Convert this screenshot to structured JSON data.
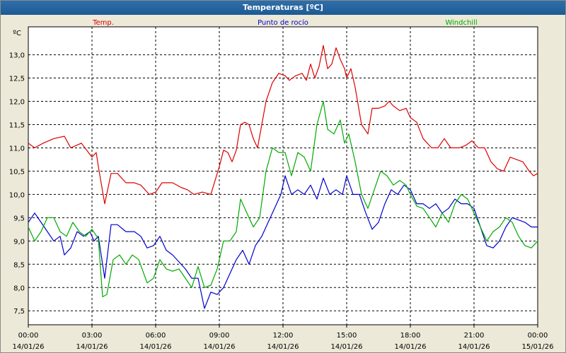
{
  "window": {
    "title": "Temperaturas [ºC]"
  },
  "colors": {
    "temp": "#dd0000",
    "dew": "#0000cc",
    "windchill": "#00aa00",
    "grid": "#000000",
    "plot_bg": "#ffffff"
  },
  "chart_data": {
    "type": "line",
    "title": "Temperaturas [ºC]",
    "ylabel": "ºC",
    "ylim": [
      7.2,
      13.6
    ],
    "yticks": [
      "7,5",
      "8,0",
      "8,5",
      "9,0",
      "9,5",
      "10,0",
      "10,5",
      "11,0",
      "11,5",
      "12,0",
      "12,5",
      "13,0"
    ],
    "yticks_values": [
      7.5,
      8,
      8.5,
      9,
      9.5,
      10,
      10.5,
      11,
      11.5,
      12,
      12.5,
      13
    ],
    "xlim": [
      0,
      24
    ],
    "xticks": [
      {
        "time": "00:00",
        "date": "14/01/26"
      },
      {
        "time": "03:00",
        "date": "14/01/26"
      },
      {
        "time": "06:00",
        "date": "14/01/26"
      },
      {
        "time": "09:00",
        "date": "14/01/26"
      },
      {
        "time": "12:00",
        "date": "14/01/26"
      },
      {
        "time": "15:00",
        "date": "14/01/26"
      },
      {
        "time": "18:00",
        "date": "14/01/26"
      },
      {
        "time": "21:00",
        "date": "14/01/26"
      },
      {
        "time": "00:00",
        "date": "15/01/26"
      }
    ],
    "xticks_values": [
      0,
      3,
      6,
      9,
      12,
      15,
      18,
      21,
      24
    ],
    "grid": true,
    "legend_placement": "top",
    "series": [
      {
        "name": "Temp.",
        "color": "#dd0000",
        "points": [
          [
            0,
            11.1
          ],
          [
            0.3,
            11.0
          ],
          [
            0.7,
            11.1
          ],
          [
            1.2,
            11.2
          ],
          [
            1.7,
            11.25
          ],
          [
            2.0,
            11.0
          ],
          [
            2.5,
            11.1
          ],
          [
            3.0,
            10.8
          ],
          [
            3.2,
            10.9
          ],
          [
            3.3,
            10.6
          ],
          [
            3.6,
            9.8
          ],
          [
            3.9,
            10.45
          ],
          [
            4.2,
            10.45
          ],
          [
            4.6,
            10.25
          ],
          [
            5.0,
            10.25
          ],
          [
            5.3,
            10.2
          ],
          [
            5.7,
            10.0
          ],
          [
            6.0,
            10.05
          ],
          [
            6.3,
            10.25
          ],
          [
            6.8,
            10.25
          ],
          [
            7.2,
            10.15
          ],
          [
            7.5,
            10.1
          ],
          [
            7.8,
            10.0
          ],
          [
            8.2,
            10.05
          ],
          [
            8.6,
            10.0
          ],
          [
            9.0,
            10.6
          ],
          [
            9.2,
            10.95
          ],
          [
            9.4,
            10.9
          ],
          [
            9.6,
            10.7
          ],
          [
            9.8,
            10.95
          ],
          [
            10.0,
            11.5
          ],
          [
            10.2,
            11.55
          ],
          [
            10.4,
            11.5
          ],
          [
            10.6,
            11.2
          ],
          [
            10.8,
            11.0
          ],
          [
            11.0,
            11.5
          ],
          [
            11.2,
            12.0
          ],
          [
            11.5,
            12.4
          ],
          [
            11.8,
            12.6
          ],
          [
            12.1,
            12.55
          ],
          [
            12.3,
            12.45
          ],
          [
            12.6,
            12.55
          ],
          [
            12.9,
            12.6
          ],
          [
            13.1,
            12.45
          ],
          [
            13.3,
            12.8
          ],
          [
            13.5,
            12.5
          ],
          [
            13.7,
            12.75
          ],
          [
            13.9,
            13.2
          ],
          [
            14.1,
            12.7
          ],
          [
            14.3,
            12.8
          ],
          [
            14.5,
            13.15
          ],
          [
            14.7,
            12.9
          ],
          [
            14.9,
            12.7
          ],
          [
            15.0,
            12.5
          ],
          [
            15.2,
            12.7
          ],
          [
            15.4,
            12.3
          ],
          [
            15.7,
            11.5
          ],
          [
            16.0,
            11.3
          ],
          [
            16.2,
            11.85
          ],
          [
            16.5,
            11.85
          ],
          [
            16.8,
            11.9
          ],
          [
            17.0,
            12.0
          ],
          [
            17.2,
            11.9
          ],
          [
            17.5,
            11.8
          ],
          [
            17.8,
            11.85
          ],
          [
            18.0,
            11.65
          ],
          [
            18.3,
            11.55
          ],
          [
            18.6,
            11.2
          ],
          [
            19.0,
            11.0
          ],
          [
            19.3,
            11.0
          ],
          [
            19.6,
            11.2
          ],
          [
            19.9,
            11.0
          ],
          [
            20.3,
            11.0
          ],
          [
            20.6,
            11.05
          ],
          [
            20.9,
            11.15
          ],
          [
            21.2,
            11.0
          ],
          [
            21.5,
            11.0
          ],
          [
            21.8,
            10.7
          ],
          [
            22.1,
            10.55
          ],
          [
            22.4,
            10.5
          ],
          [
            22.7,
            10.8
          ],
          [
            23.0,
            10.75
          ],
          [
            23.3,
            10.7
          ],
          [
            23.6,
            10.5
          ],
          [
            23.8,
            10.4
          ],
          [
            24.0,
            10.45
          ]
        ]
      },
      {
        "name": "Punto de rocío",
        "color": "#0000cc",
        "points": [
          [
            0,
            9.4
          ],
          [
            0.3,
            9.6
          ],
          [
            0.6,
            9.4
          ],
          [
            0.9,
            9.2
          ],
          [
            1.2,
            9.0
          ],
          [
            1.5,
            9.1
          ],
          [
            1.7,
            8.7
          ],
          [
            2.0,
            8.85
          ],
          [
            2.3,
            9.2
          ],
          [
            2.6,
            9.1
          ],
          [
            2.9,
            9.2
          ],
          [
            3.1,
            9.0
          ],
          [
            3.3,
            9.1
          ],
          [
            3.6,
            8.2
          ],
          [
            3.9,
            9.35
          ],
          [
            4.2,
            9.35
          ],
          [
            4.6,
            9.2
          ],
          [
            5.0,
            9.2
          ],
          [
            5.3,
            9.1
          ],
          [
            5.6,
            8.85
          ],
          [
            5.9,
            8.9
          ],
          [
            6.2,
            9.1
          ],
          [
            6.5,
            8.8
          ],
          [
            6.8,
            8.7
          ],
          [
            7.1,
            8.55
          ],
          [
            7.4,
            8.4
          ],
          [
            7.7,
            8.2
          ],
          [
            8.0,
            8.2
          ],
          [
            8.3,
            7.55
          ],
          [
            8.6,
            7.9
          ],
          [
            8.9,
            7.85
          ],
          [
            9.2,
            8.0
          ],
          [
            9.5,
            8.3
          ],
          [
            9.8,
            8.6
          ],
          [
            10.1,
            8.8
          ],
          [
            10.4,
            8.5
          ],
          [
            10.7,
            8.9
          ],
          [
            11.0,
            9.1
          ],
          [
            11.3,
            9.4
          ],
          [
            11.6,
            9.7
          ],
          [
            11.9,
            10.0
          ],
          [
            12.1,
            10.4
          ],
          [
            12.4,
            10.0
          ],
          [
            12.7,
            10.1
          ],
          [
            13.0,
            10.0
          ],
          [
            13.3,
            10.2
          ],
          [
            13.6,
            9.9
          ],
          [
            13.9,
            10.35
          ],
          [
            14.2,
            10.0
          ],
          [
            14.5,
            10.1
          ],
          [
            14.8,
            10.0
          ],
          [
            15.0,
            10.4
          ],
          [
            15.3,
            10.0
          ],
          [
            15.6,
            10.0
          ],
          [
            15.9,
            9.6
          ],
          [
            16.2,
            9.25
          ],
          [
            16.5,
            9.4
          ],
          [
            16.8,
            9.8
          ],
          [
            17.1,
            10.1
          ],
          [
            17.4,
            10.0
          ],
          [
            17.7,
            10.2
          ],
          [
            18.0,
            10.1
          ],
          [
            18.3,
            9.8
          ],
          [
            18.6,
            9.8
          ],
          [
            18.9,
            9.7
          ],
          [
            19.2,
            9.8
          ],
          [
            19.5,
            9.6
          ],
          [
            19.8,
            9.7
          ],
          [
            20.1,
            9.9
          ],
          [
            20.4,
            9.8
          ],
          [
            20.7,
            9.8
          ],
          [
            21.0,
            9.7
          ],
          [
            21.3,
            9.3
          ],
          [
            21.6,
            8.9
          ],
          [
            21.9,
            8.85
          ],
          [
            22.2,
            9.0
          ],
          [
            22.5,
            9.3
          ],
          [
            22.8,
            9.5
          ],
          [
            23.1,
            9.45
          ],
          [
            23.4,
            9.4
          ],
          [
            23.7,
            9.3
          ],
          [
            24.0,
            9.3
          ]
        ]
      },
      {
        "name": "Windchill",
        "color": "#00aa00",
        "points": [
          [
            0,
            9.3
          ],
          [
            0.3,
            9.0
          ],
          [
            0.6,
            9.2
          ],
          [
            0.9,
            9.5
          ],
          [
            1.2,
            9.5
          ],
          [
            1.5,
            9.2
          ],
          [
            1.8,
            9.1
          ],
          [
            2.1,
            9.4
          ],
          [
            2.4,
            9.2
          ],
          [
            2.7,
            9.1
          ],
          [
            3.0,
            9.25
          ],
          [
            3.3,
            9.05
          ],
          [
            3.5,
            7.8
          ],
          [
            3.7,
            7.85
          ],
          [
            4.0,
            8.6
          ],
          [
            4.3,
            8.7
          ],
          [
            4.6,
            8.5
          ],
          [
            4.9,
            8.7
          ],
          [
            5.2,
            8.6
          ],
          [
            5.6,
            8.1
          ],
          [
            5.9,
            8.2
          ],
          [
            6.2,
            8.6
          ],
          [
            6.5,
            8.4
          ],
          [
            6.8,
            8.35
          ],
          [
            7.1,
            8.4
          ],
          [
            7.4,
            8.2
          ],
          [
            7.7,
            8.0
          ],
          [
            8.0,
            8.45
          ],
          [
            8.3,
            8.0
          ],
          [
            8.6,
            8.05
          ],
          [
            8.9,
            8.4
          ],
          [
            9.2,
            9.0
          ],
          [
            9.5,
            9.0
          ],
          [
            9.8,
            9.2
          ],
          [
            10.0,
            9.9
          ],
          [
            10.3,
            9.6
          ],
          [
            10.6,
            9.3
          ],
          [
            10.9,
            9.5
          ],
          [
            11.2,
            10.5
          ],
          [
            11.5,
            11.0
          ],
          [
            11.8,
            10.9
          ],
          [
            12.1,
            10.9
          ],
          [
            12.4,
            10.4
          ],
          [
            12.7,
            10.9
          ],
          [
            13.0,
            10.8
          ],
          [
            13.3,
            10.5
          ],
          [
            13.6,
            11.5
          ],
          [
            13.9,
            12.0
          ],
          [
            14.1,
            11.4
          ],
          [
            14.4,
            11.3
          ],
          [
            14.7,
            11.6
          ],
          [
            14.9,
            11.1
          ],
          [
            15.1,
            11.3
          ],
          [
            15.4,
            10.7
          ],
          [
            15.7,
            10.0
          ],
          [
            16.0,
            9.7
          ],
          [
            16.3,
            10.1
          ],
          [
            16.6,
            10.5
          ],
          [
            16.9,
            10.4
          ],
          [
            17.2,
            10.2
          ],
          [
            17.5,
            10.3
          ],
          [
            17.8,
            10.2
          ],
          [
            18.0,
            10.0
          ],
          [
            18.3,
            9.75
          ],
          [
            18.6,
            9.7
          ],
          [
            18.9,
            9.5
          ],
          [
            19.2,
            9.3
          ],
          [
            19.5,
            9.6
          ],
          [
            19.8,
            9.4
          ],
          [
            20.1,
            9.8
          ],
          [
            20.4,
            10.0
          ],
          [
            20.7,
            9.9
          ],
          [
            21.0,
            9.6
          ],
          [
            21.3,
            9.3
          ],
          [
            21.6,
            9.0
          ],
          [
            21.9,
            9.2
          ],
          [
            22.2,
            9.3
          ],
          [
            22.5,
            9.5
          ],
          [
            22.8,
            9.4
          ],
          [
            23.1,
            9.1
          ],
          [
            23.4,
            8.9
          ],
          [
            23.7,
            8.85
          ],
          [
            24.0,
            9.0
          ]
        ]
      }
    ]
  }
}
